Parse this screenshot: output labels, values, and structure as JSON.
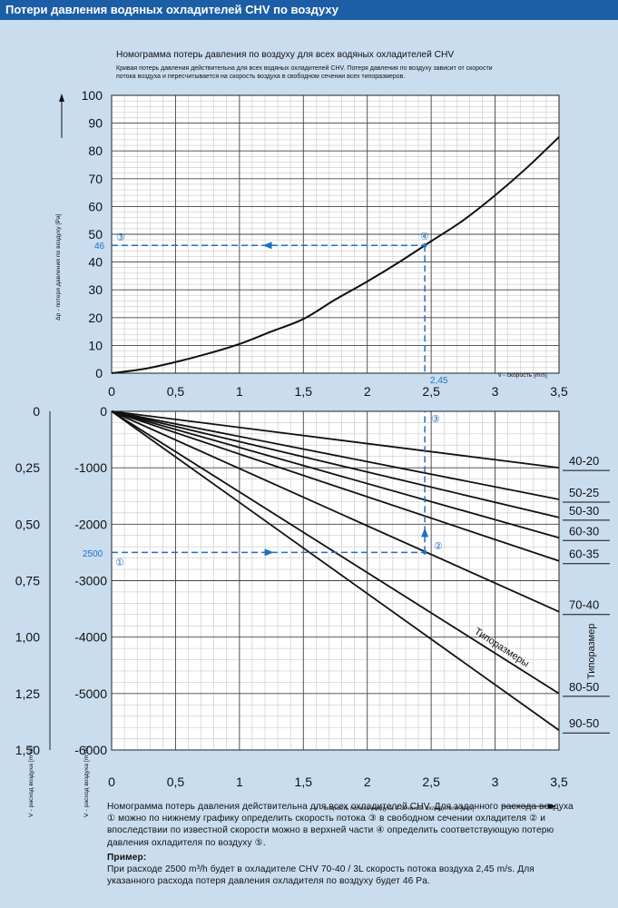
{
  "header": {
    "title": "Потери давления водяных охладителей CHV по воздуху"
  },
  "top_chart": {
    "title": "Номограмма потерь давления по воздуху для всех водяных охладителей CHV",
    "subtitle_lines": [
      "Кривая потерь давления действительна для всех водяных охладителей CHV. Потеря давления по воздуху зависит от скорости",
      "потока воздуха и пересчитывается на скорость воздуха в свободном сечении всех типоразмеров."
    ],
    "ylabel": "Δp - потеря давления по воздуху [Pa]",
    "xlabel": "v - скорость [m/s]",
    "marker_value_label": "46",
    "marker_x_label": "2,45",
    "circle_labels": {
      "three": "③",
      "four": "④"
    }
  },
  "bottom_chart": {
    "xlabel": "v - скорость потока воздуха в сечении охладителя [m/s]",
    "left_axis_label": "V - расход воздуха [m³/s]",
    "right_axis_label": "V - расход воздуха [m³/h]",
    "right_title": "Типоразмер",
    "curves_label": "Типоразмеры",
    "marker_value_label": "2500",
    "circle_labels": {
      "one": "①",
      "two": "②",
      "three": "③"
    }
  },
  "description": {
    "text": "Номограмма потерь давления действительна для всех охладителей CHV. Для заданного расхода воздуха ① можно по нижнему графику определить скорость потока ③ в свободном сечении охладителя ② и впоследствии по известной скорости можно в верхней части ④ определить соответствующую потерю давления охладителя по воздуху ⑤.",
    "example_title": "Пример:",
    "example_text": "При расходе 2500 m³/h будет в охладителе CHV 70-40 / 3L скорость потока воздуха 2,45 m/s. Для указанного расхода потеря давления охладителя по воздуху будет 46 Pa."
  },
  "colors": {
    "title_bg": "#1b5ea6",
    "page_bg": "#c9ddef",
    "plot_bg": "#ffffff",
    "accent": "#1f6fc2",
    "curve": "#111111"
  },
  "chart_data": [
    {
      "type": "line",
      "title": "Номограмма потерь давления по воздуху для всех водяных охладителей CHV",
      "xlabel": "v - скорость [m/s]",
      "ylabel": "Δp - потеря давления по воздуху [Pa]",
      "xlim": [
        0,
        3.5
      ],
      "ylim": [
        0,
        100
      ],
      "xticks": [
        0,
        0.5,
        1,
        1.5,
        2,
        2.5,
        3,
        3.5
      ],
      "xtick_labels": [
        "0",
        "0,5",
        "1",
        "1,5",
        "2",
        "2,5",
        "3",
        "3,5"
      ],
      "yticks": [
        0,
        10,
        20,
        30,
        40,
        50,
        60,
        70,
        80,
        90,
        100
      ],
      "ytick_labels": [
        "0",
        "10",
        "20",
        "30",
        "40",
        "50",
        "60",
        "70",
        "80",
        "90",
        "100"
      ],
      "grid": true,
      "series": [
        {
          "x": [
            0,
            0.25,
            0.5,
            0.75,
            1.0,
            1.25,
            1.5,
            1.75,
            2.0,
            2.25,
            2.5,
            2.75,
            3.0,
            3.25,
            3.5
          ],
          "y": [
            0,
            1.5,
            4,
            7,
            10.5,
            15,
            19.5,
            26.5,
            33,
            40,
            47.5,
            55,
            64,
            74,
            85
          ]
        }
      ],
      "example": {
        "x": 2.45,
        "y": 46
      }
    },
    {
      "type": "line",
      "xlabel": "v - скорость потока воздуха в сечении охладителя [m/s]",
      "xlim": [
        0,
        3.5
      ],
      "ylim": [
        -6000,
        0
      ],
      "xticks": [
        0,
        0.5,
        1,
        1.5,
        2,
        2.5,
        3,
        3.5
      ],
      "xtick_labels": [
        "0",
        "0,5",
        "1",
        "1,5",
        "2",
        "2,5",
        "3",
        "3,5"
      ],
      "yticks": [
        0,
        -1000,
        -2000,
        -3000,
        -4000,
        -5000,
        -6000
      ],
      "ytick_labels": [
        "0",
        "-1000",
        "-2000",
        "-3000",
        "-4000",
        "-5000",
        "-6000"
      ],
      "secondary_yticks": [
        0,
        -0.25,
        -0.5,
        -0.75,
        -1.0,
        -1.25,
        -1.5
      ],
      "secondary_ytick_labels": [
        "0",
        "0,25",
        "0,50",
        "0,75",
        "1,00",
        "1,25",
        "1,50"
      ],
      "grid": true,
      "series": [
        {
          "name": "40-20",
          "x": [
            0,
            3.5
          ],
          "y": [
            0,
            -1000
          ]
        },
        {
          "name": "50-25",
          "x": [
            0,
            3.5
          ],
          "y": [
            0,
            -1560
          ]
        },
        {
          "name": "50-30",
          "x": [
            0,
            3.5
          ],
          "y": [
            0,
            -1880
          ]
        },
        {
          "name": "60-30",
          "x": [
            0,
            3.5
          ],
          "y": [
            0,
            -2240
          ]
        },
        {
          "name": "60-35",
          "x": [
            0,
            3.5
          ],
          "y": [
            0,
            -2650
          ]
        },
        {
          "name": "70-40",
          "x": [
            0,
            3.5
          ],
          "y": [
            0,
            -3550
          ]
        },
        {
          "name": "80-50",
          "x": [
            0,
            3.5
          ],
          "y": [
            0,
            -5000
          ]
        },
        {
          "name": "90-50",
          "x": [
            0,
            3.5
          ],
          "y": [
            0,
            -5650
          ]
        }
      ],
      "example": {
        "x": 2.45,
        "y": -2500
      }
    }
  ]
}
